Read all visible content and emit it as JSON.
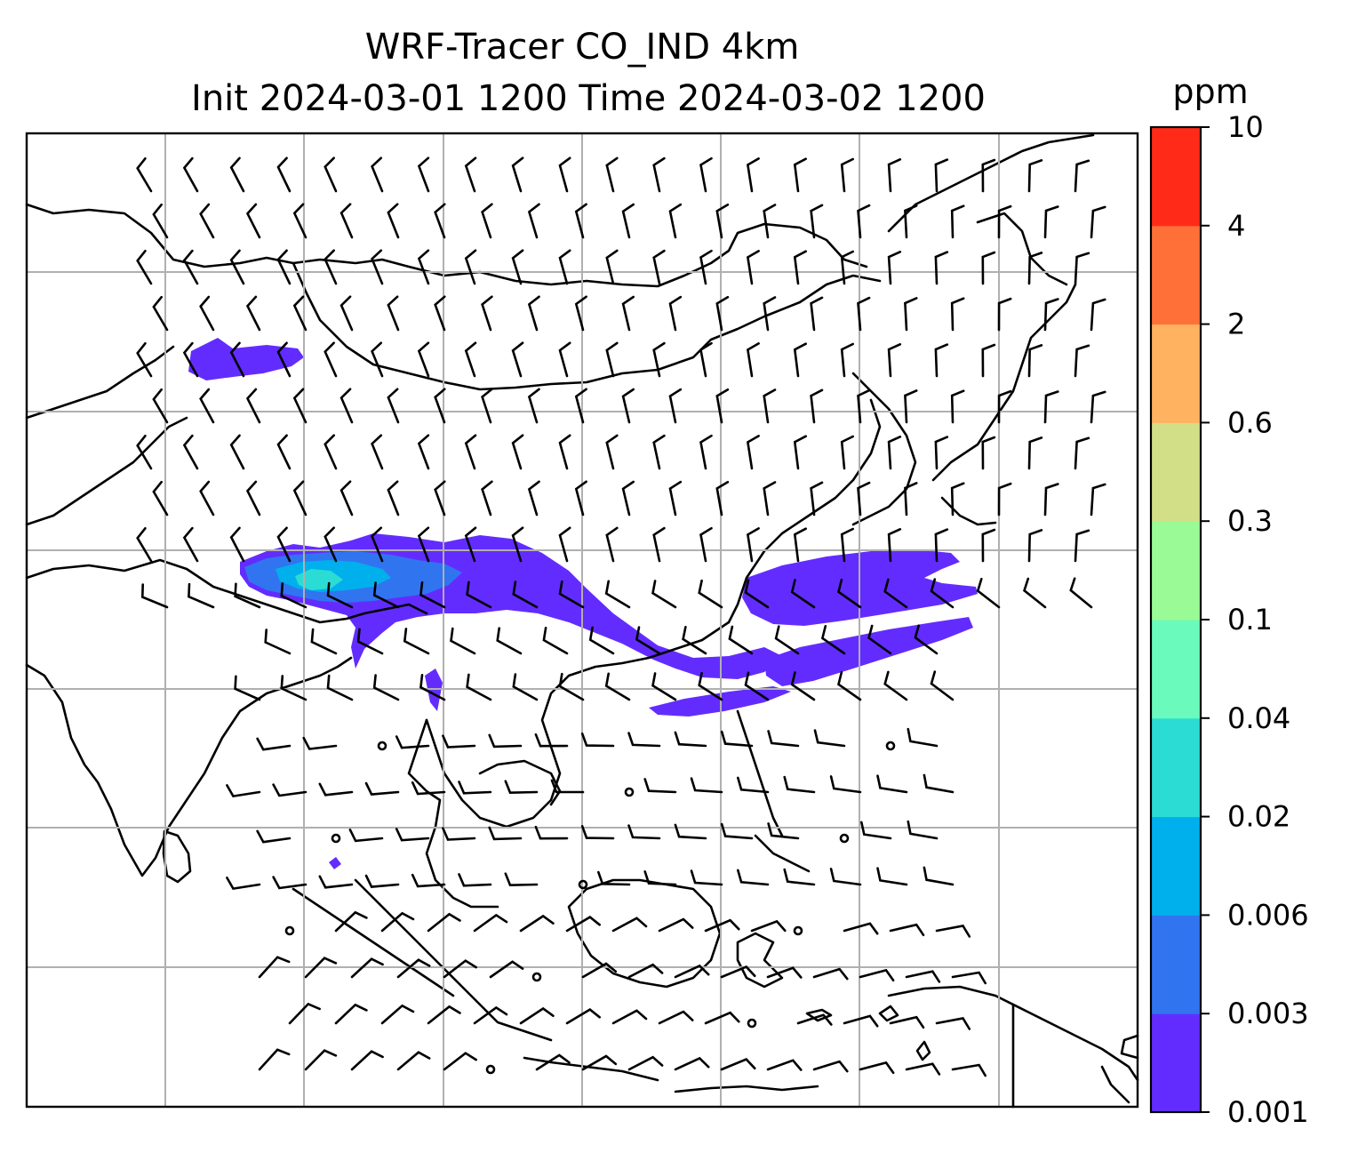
{
  "chart_data": {
    "type": "heatmap",
    "title_line1": "WRF-Tracer CO_IND 4km",
    "title_line2": "Init 2024-03-01 1200 Time 2024-03-02 1200",
    "colorbar": {
      "unit": "ppm",
      "levels": [
        "0.001",
        "0.003",
        "0.006",
        "0.02",
        "0.04",
        "0.1",
        "0.3",
        "0.6",
        "2",
        "4",
        "10"
      ],
      "colors": [
        "#632cff",
        "#3174f0",
        "#00b0ec",
        "#2bdcd5",
        "#6afabc",
        "#9afb96",
        "#d2df87",
        "#ffb260",
        "#ff7039",
        "#ff2b18"
      ]
    },
    "map": {
      "gridlines": true,
      "coastlines": true,
      "wind_barbs": true
    }
  }
}
